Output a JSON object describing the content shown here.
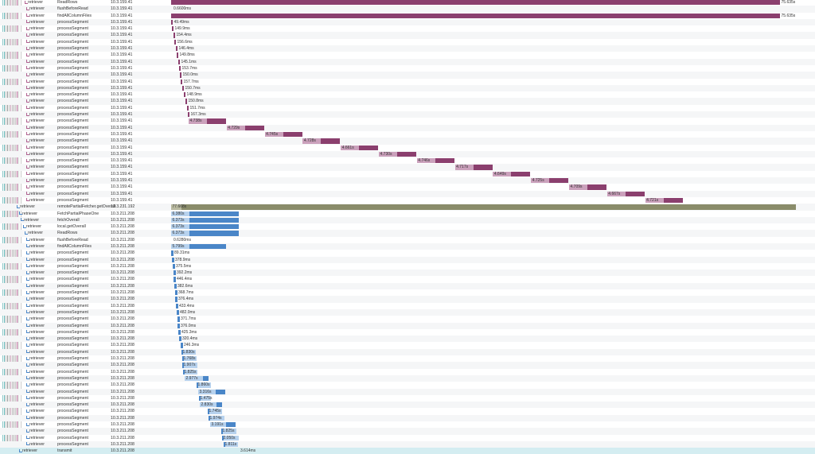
{
  "colors": {
    "span_dark_a": "#8b3f6e",
    "span_light_a": "#cba1bc",
    "span_dark_b": "#4a86c8",
    "span_light_b": "#b7d2ee",
    "span_root": "#8a8c6a",
    "span_root_light": "#b9baa0",
    "selected_row": "#d4edf1"
  },
  "rows": [
    {
      "service": "retriever",
      "operation": "ReadRows",
      "host": "10.3.159.41",
      "duration": "75.635s"
    },
    {
      "service": "retriever",
      "operation": "flushBeforeRead",
      "host": "10.3.159.41",
      "duration": "0.6600ms"
    },
    {
      "service": "retriever",
      "operation": "findAllColumnFiles",
      "host": "10.3.159.41",
      "duration": "75.635s"
    },
    {
      "service": "retriever",
      "operation": "processSegment",
      "host": "10.3.159.41",
      "duration": "49.49ms"
    },
    {
      "service": "retriever",
      "operation": "processSegment",
      "host": "10.3.159.41",
      "duration": "149.9ms"
    },
    {
      "service": "retriever",
      "operation": "processSegment",
      "host": "10.3.159.41",
      "duration": "154.4ms"
    },
    {
      "service": "retriever",
      "operation": "processSegment",
      "host": "10.3.159.41",
      "duration": "156.6ms"
    },
    {
      "service": "retriever",
      "operation": "processSegment",
      "host": "10.3.159.41",
      "duration": "146.4ms"
    },
    {
      "service": "retriever",
      "operation": "processSegment",
      "host": "10.3.159.41",
      "duration": "149.8ms"
    },
    {
      "service": "retriever",
      "operation": "processSegment",
      "host": "10.3.159.41",
      "duration": "145.1ms"
    },
    {
      "service": "retriever",
      "operation": "processSegment",
      "host": "10.3.159.41",
      "duration": "153.7ms"
    },
    {
      "service": "retriever",
      "operation": "processSegment",
      "host": "10.3.159.41",
      "duration": "150.0ms"
    },
    {
      "service": "retriever",
      "operation": "processSegment",
      "host": "10.3.159.41",
      "duration": "157.7ms"
    },
    {
      "service": "retriever",
      "operation": "processSegment",
      "host": "10.3.159.41",
      "duration": "150.7ms"
    },
    {
      "service": "retriever",
      "operation": "processSegment",
      "host": "10.3.159.41",
      "duration": "148.9ms"
    },
    {
      "service": "retriever",
      "operation": "processSegment",
      "host": "10.3.159.41",
      "duration": "150.8ms"
    },
    {
      "service": "retriever",
      "operation": "processSegment",
      "host": "10.3.159.41",
      "duration": "151.7ms"
    },
    {
      "service": "retriever",
      "operation": "processSegment",
      "host": "10.3.159.41",
      "duration": "167.3ms"
    },
    {
      "service": "retriever",
      "operation": "processSegment",
      "host": "10.3.159.41",
      "duration": "4.738s"
    },
    {
      "service": "retriever",
      "operation": "processSegment",
      "host": "10.3.159.41",
      "duration": "4.729s"
    },
    {
      "service": "retriever",
      "operation": "processSegment",
      "host": "10.3.159.41",
      "duration": "4.745s"
    },
    {
      "service": "retriever",
      "operation": "processSegment",
      "host": "10.3.159.41",
      "duration": "4.728s"
    },
    {
      "service": "retriever",
      "operation": "processSegment",
      "host": "10.3.159.41",
      "duration": "4.661s"
    },
    {
      "service": "retriever",
      "operation": "processSegment",
      "host": "10.3.159.41",
      "duration": "4.730s"
    },
    {
      "service": "retriever",
      "operation": "processSegment",
      "host": "10.3.159.41",
      "duration": "4.746s"
    },
    {
      "service": "retriever",
      "operation": "processSegment",
      "host": "10.3.159.41",
      "duration": "4.717s"
    },
    {
      "service": "retriever",
      "operation": "processSegment",
      "host": "10.3.159.41",
      "duration": "4.649s"
    },
    {
      "service": "retriever",
      "operation": "processSegment",
      "host": "10.3.159.41",
      "duration": "4.725s"
    },
    {
      "service": "retriever",
      "operation": "processSegment",
      "host": "10.3.159.41",
      "duration": "4.709s"
    },
    {
      "service": "retriever",
      "operation": "processSegment",
      "host": "10.3.159.41",
      "duration": "4.667s"
    },
    {
      "service": "retriever",
      "operation": "processSegment",
      "host": "10.3.159.41",
      "duration": "4.721s"
    },
    {
      "service": "retriever",
      "operation": "remotePartialFetcher.getOverall",
      "host": "10.3.231.192",
      "duration": "77.668s"
    },
    {
      "service": "retriever",
      "operation": "FetchPartialPhaseOne",
      "host": "10.3.211.208",
      "duration": "6.380s"
    },
    {
      "service": "retriever",
      "operation": "fetchOverall",
      "host": "10.3.211.208",
      "duration": "6.373s"
    },
    {
      "service": "retriever",
      "operation": "local.getOverall",
      "host": "10.3.211.208",
      "duration": "6.373s"
    },
    {
      "service": "retriever",
      "operation": "ReadRows",
      "host": "10.3.211.208",
      "duration": "6.373s"
    },
    {
      "service": "retriever",
      "operation": "flushBeforeRead",
      "host": "10.3.211.208",
      "duration": "0.6280ms"
    },
    {
      "service": "retriever",
      "operation": "findAllColumnFiles",
      "host": "10.3.211.208",
      "duration": "5.799s"
    },
    {
      "service": "retriever",
      "operation": "processSegment",
      "host": "10.3.211.208",
      "duration": "89.31ms"
    },
    {
      "service": "retriever",
      "operation": "processSegment",
      "host": "10.3.211.208",
      "duration": "378.9ms"
    },
    {
      "service": "retriever",
      "operation": "processSegment",
      "host": "10.3.211.208",
      "duration": "375.5ms"
    },
    {
      "service": "retriever",
      "operation": "processSegment",
      "host": "10.3.211.208",
      "duration": "392.2ms"
    },
    {
      "service": "retriever",
      "operation": "processSegment",
      "host": "10.3.211.208",
      "duration": "446.4ms"
    },
    {
      "service": "retriever",
      "operation": "processSegment",
      "host": "10.3.211.208",
      "duration": "382.6ms"
    },
    {
      "service": "retriever",
      "operation": "processSegment",
      "host": "10.3.211.208",
      "duration": "368.7ms"
    },
    {
      "service": "retriever",
      "operation": "processSegment",
      "host": "10.3.211.208",
      "duration": "376.4ms"
    },
    {
      "service": "retriever",
      "operation": "processSegment",
      "host": "10.3.211.208",
      "duration": "433.4ms"
    },
    {
      "service": "retriever",
      "operation": "processSegment",
      "host": "10.3.211.208",
      "duration": "482.0ms"
    },
    {
      "service": "retriever",
      "operation": "processSegment",
      "host": "10.3.211.208",
      "duration": "371.7ms"
    },
    {
      "service": "retriever",
      "operation": "processSegment",
      "host": "10.3.211.208",
      "duration": "376.0ms"
    },
    {
      "service": "retriever",
      "operation": "processSegment",
      "host": "10.3.211.208",
      "duration": "425.3ms"
    },
    {
      "service": "retriever",
      "operation": "processSegment",
      "host": "10.3.211.208",
      "duration": "320.4ms"
    },
    {
      "service": "retriever",
      "operation": "processSegment",
      "host": "10.3.211.208",
      "duration": "246.3ms"
    },
    {
      "service": "retriever",
      "operation": "processSegment",
      "host": "10.3.211.208",
      "duration": "1.830s"
    },
    {
      "service": "retriever",
      "operation": "processSegment",
      "host": "10.3.211.208",
      "duration": "1.768s"
    },
    {
      "service": "retriever",
      "operation": "processSegment",
      "host": "10.3.211.208",
      "duration": "1.907s"
    },
    {
      "service": "retriever",
      "operation": "processSegment",
      "host": "10.3.211.208",
      "duration": "1.825s"
    },
    {
      "service": "retriever",
      "operation": "processSegment",
      "host": "10.3.211.208",
      "duration": "2.977s"
    },
    {
      "service": "retriever",
      "operation": "processSegment",
      "host": "10.3.211.208",
      "duration": "1.860s"
    },
    {
      "service": "retriever",
      "operation": "processSegment",
      "host": "10.3.211.208",
      "duration": "3.316s"
    },
    {
      "service": "retriever",
      "operation": "processSegment",
      "host": "10.3.211.208",
      "duration": "1.475s"
    },
    {
      "service": "retriever",
      "operation": "processSegment",
      "host": "10.3.211.208",
      "duration": "2.830s"
    },
    {
      "service": "retriever",
      "operation": "processSegment",
      "host": "10.3.211.208",
      "duration": "1.745s"
    },
    {
      "service": "retriever",
      "operation": "processSegment",
      "host": "10.3.211.208",
      "duration": "1.974s"
    },
    {
      "service": "retriever",
      "operation": "processSegment",
      "host": "10.3.211.208",
      "duration": "3.191s"
    },
    {
      "service": "retriever",
      "operation": "processSegment",
      "host": "10.3.211.208",
      "duration": "1.825s"
    },
    {
      "service": "retriever",
      "operation": "processSegment",
      "host": "10.3.211.208",
      "duration": "2.050s"
    },
    {
      "service": "retriever",
      "operation": "processSegment",
      "host": "10.3.211.208",
      "duration": "1.811s"
    },
    {
      "service": "retriever",
      "operation": "transmit",
      "host": "10.3.211.208",
      "duration": "3.614ms"
    }
  ]
}
